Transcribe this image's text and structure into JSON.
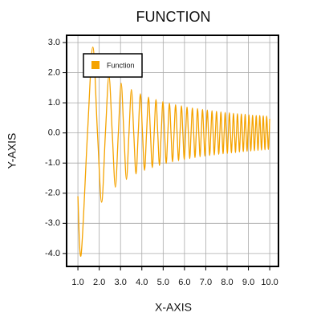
{
  "chart_data": {
    "type": "line",
    "title": "FUNCTION",
    "xlabel": "X-AXIS",
    "ylabel": "Y-AXIS",
    "grid": true,
    "legend": "upper left",
    "xlim": [
      0.47,
      10.41
    ],
    "ylim": [
      -4.43,
      3.24
    ],
    "xticks": [
      {
        "value": 1,
        "label": "1.0"
      },
      {
        "value": 2,
        "label": "2.0"
      },
      {
        "value": 3,
        "label": "3.0"
      },
      {
        "value": 4,
        "label": "4.0"
      },
      {
        "value": 5,
        "label": "5.0"
      },
      {
        "value": 6,
        "label": "6.0"
      },
      {
        "value": 7,
        "label": "7.0"
      },
      {
        "value": 8,
        "label": "8.0"
      },
      {
        "value": 9,
        "label": "9.0"
      },
      {
        "value": 10,
        "label": "10.0"
      }
    ],
    "yticks": [
      {
        "value": 3,
        "label": "3.0"
      },
      {
        "value": 2,
        "label": "2.0"
      },
      {
        "value": 1,
        "label": "1.0"
      },
      {
        "value": 0,
        "label": "0.0"
      },
      {
        "value": -1,
        "label": "-1.0"
      },
      {
        "value": -2,
        "label": "-2.0"
      },
      {
        "value": -3,
        "label": "-3.0"
      },
      {
        "value": -4,
        "label": "-4.0"
      }
    ],
    "x": [
      1.0,
      1.149,
      1.451,
      1.701,
      1.918,
      2.113,
      2.291,
      2.456,
      2.611,
      2.758,
      2.897,
      3.029,
      3.156,
      3.278,
      3.396,
      3.51,
      3.62,
      3.727,
      3.831,
      3.932,
      4.03,
      4.127,
      4.221,
      4.313,
      4.403,
      4.491,
      4.578,
      4.663,
      4.746,
      4.828,
      4.909,
      4.988,
      5.066,
      5.143,
      5.219,
      5.294,
      5.368,
      5.44,
      5.512,
      5.583,
      5.653,
      5.722,
      5.79,
      5.857,
      5.924,
      5.99,
      6.055,
      6.12,
      6.183,
      6.247,
      6.309,
      6.371,
      6.432,
      6.493,
      6.553,
      6.613,
      6.672,
      6.731,
      6.789,
      6.846,
      6.904,
      6.96,
      7.016,
      7.072,
      7.127,
      7.182,
      7.237,
      7.291,
      7.345,
      7.398,
      7.451,
      7.503,
      7.555,
      7.607,
      7.659,
      7.71,
      7.761,
      7.811,
      7.861,
      7.911,
      7.96,
      8.01,
      8.058,
      8.107,
      8.155,
      8.203,
      8.251,
      8.299,
      8.346,
      8.393,
      8.439,
      8.486,
      8.532,
      8.578,
      8.623,
      8.669,
      8.714,
      8.759,
      8.804,
      8.848,
      8.892,
      8.937,
      8.98,
      9.024,
      9.067,
      9.111,
      9.154,
      9.196,
      9.239,
      9.281,
      9.324,
      9.366,
      9.407,
      9.449,
      9.491,
      9.532,
      9.573,
      9.614,
      9.655,
      9.695,
      9.736,
      9.776,
      9.816,
      9.856,
      9.896,
      9.935,
      9.975,
      10.0
    ],
    "series": [
      {
        "name": "Function",
        "color": "#f5a300",
        "values": [
          -2.1,
          -4.05,
          0,
          2.85,
          0,
          -2.3,
          0,
          1.9,
          0,
          -1.8,
          0,
          1.65,
          0,
          -1.54,
          0,
          1.44,
          0,
          -1.36,
          0,
          1.3,
          0,
          -1.24,
          0,
          1.19,
          0,
          -1.15,
          0,
          1.11,
          0,
          -1.08,
          0,
          1.04,
          0,
          -1.01,
          0,
          0.99,
          0,
          -0.96,
          0,
          0.94,
          0,
          -0.92,
          0,
          0.9,
          0,
          -0.88,
          0,
          0.86,
          0,
          -0.85,
          0,
          0.83,
          0,
          -0.82,
          0,
          0.81,
          0,
          -0.79,
          0,
          0.78,
          0,
          -0.77,
          0,
          0.76,
          0,
          -0.75,
          0,
          0.74,
          0,
          -0.73,
          0,
          0.72,
          0,
          -0.71,
          0,
          0.7,
          0,
          -0.69,
          0,
          0.68,
          0,
          -0.68,
          0,
          0.67,
          0,
          -0.66,
          0,
          0.65,
          0,
          -0.65,
          0,
          0.64,
          0,
          -0.63,
          0,
          0.63,
          0,
          -0.62,
          0,
          0.62,
          0,
          -0.61,
          0,
          0.6,
          0,
          -0.6,
          0,
          0.59,
          0,
          -0.59,
          0,
          0.58,
          0,
          -0.58,
          0,
          0.58,
          0,
          -0.57,
          0,
          0.57,
          0,
          -0.56,
          0,
          0.56,
          0,
          -0.55,
          0,
          0.47
        ]
      }
    ]
  }
}
